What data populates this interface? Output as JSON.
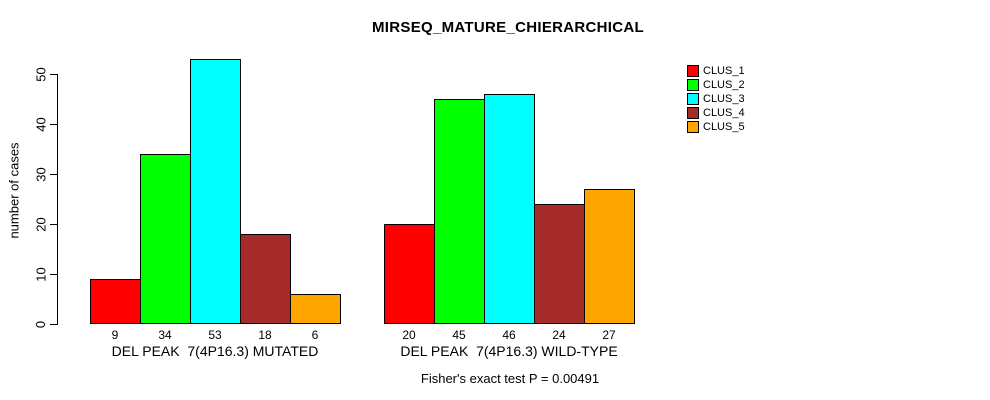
{
  "title": "MIRSEQ_MATURE_CHIERARCHICAL",
  "chart_data": {
    "type": "bar",
    "title": "MIRSEQ_MATURE_CHIERARCHICAL",
    "xlabel": "",
    "ylabel": "number of cases",
    "ylim": [
      0,
      55
    ],
    "yticks": [
      0,
      10,
      20,
      30,
      40,
      50
    ],
    "grid": false,
    "legend_position": "right-outside",
    "series": [
      {
        "name": "CLUS_1",
        "color": "#FF0000"
      },
      {
        "name": "CLUS_2",
        "color": "#00FF00"
      },
      {
        "name": "CLUS_3",
        "color": "#00FFFF"
      },
      {
        "name": "CLUS_4",
        "color": "#A52A2A"
      },
      {
        "name": "CLUS_5",
        "color": "#FFA500"
      }
    ],
    "categories": [
      "DEL PEAK  7(4P16.3) MUTATED",
      "DEL PEAK  7(4P16.3) WILD-TYPE"
    ],
    "groups": [
      {
        "label": "DEL PEAK  7(4P16.3) MUTATED",
        "values": [
          9,
          34,
          53,
          18,
          6
        ]
      },
      {
        "label": "DEL PEAK  7(4P16.3) WILD-TYPE",
        "values": [
          20,
          45,
          46,
          24,
          27
        ]
      }
    ],
    "annotation": "Fisher's exact test P = 0.00491"
  }
}
